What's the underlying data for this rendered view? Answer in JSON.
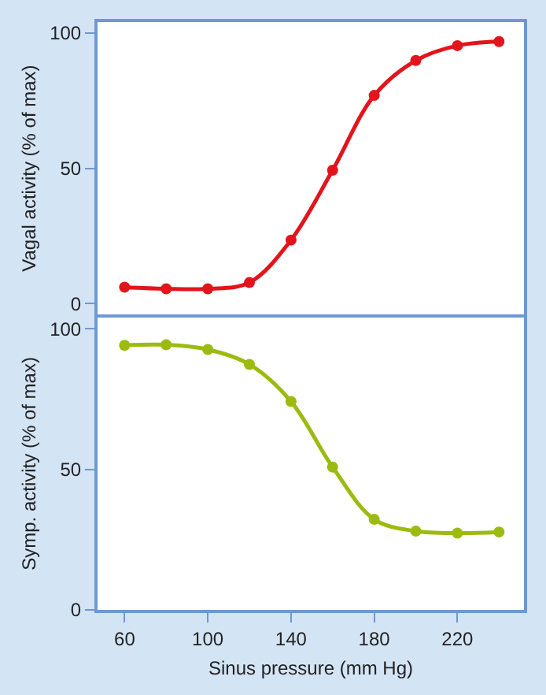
{
  "chart_data": [
    {
      "type": "line",
      "ylabel": "Vagal activity (% of max)",
      "x": [
        60,
        80,
        100,
        120,
        140,
        160,
        180,
        200,
        220,
        240
      ],
      "xlim": [
        47,
        252
      ],
      "xticks": [
        60,
        100,
        140,
        180,
        220
      ],
      "ylim": [
        -4,
        104
      ],
      "yticks": [
        0,
        50,
        100
      ],
      "tick_labels": "y",
      "marker": "circle",
      "series": [
        {
          "color": "#e3141b",
          "values": [
            6.1,
            5.5,
            5.5,
            7.8,
            23.5,
            49.3,
            76.9,
            89.8,
            95.3,
            96.8
          ]
        }
      ]
    },
    {
      "type": "line",
      "ylabel": "Symp. activity (% of max)",
      "xlabel": "Sinus pressure (mm Hg)",
      "x": [
        60,
        80,
        100,
        120,
        140,
        160,
        180,
        200,
        220,
        240
      ],
      "xlim": [
        47,
        252
      ],
      "xticks": [
        60,
        100,
        140,
        180,
        220
      ],
      "ylim": [
        0,
        104
      ],
      "yticks": [
        0,
        50,
        100
      ],
      "marker": "circle",
      "series": [
        {
          "color": "#9bbb10",
          "values": [
            94.1,
            94.3,
            92.6,
            87.3,
            74.1,
            50.8,
            32.2,
            28.0,
            27.3,
            27.7
          ]
        }
      ]
    }
  ]
}
